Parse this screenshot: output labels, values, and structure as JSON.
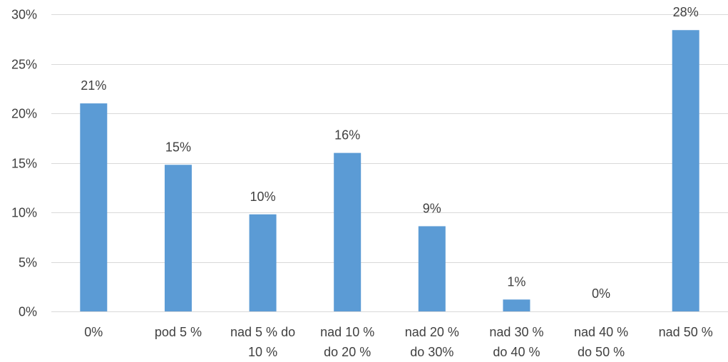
{
  "chart_data": {
    "type": "bar",
    "title": "",
    "xlabel": "",
    "ylabel": "",
    "categories": [
      [
        "0%"
      ],
      [
        "pod 5 %"
      ],
      [
        "nad 5 % do",
        "10 %"
      ],
      [
        "nad 10 %",
        "do 20 %"
      ],
      [
        "nad 20 %",
        "do 30%"
      ],
      [
        "nad 30 %",
        "do 40 %"
      ],
      [
        "nad 40 %",
        "do 50 %"
      ],
      [
        "nad 50 %"
      ]
    ],
    "values": [
      21.0,
      14.8,
      9.8,
      16.0,
      8.6,
      1.2,
      0.0,
      28.4
    ],
    "data_labels": [
      "21%",
      "15%",
      "10%",
      "16%",
      "9%",
      "1%",
      "0%",
      "28%"
    ],
    "ylim": [
      0,
      30
    ],
    "yticks": [
      0,
      5,
      10,
      15,
      20,
      25,
      30
    ],
    "ytick_labels": [
      "0%",
      "5%",
      "10%",
      "15%",
      "20%",
      "25%",
      "30%"
    ],
    "grid": true,
    "legend": "none",
    "bar_color": "#5b9bd5"
  }
}
